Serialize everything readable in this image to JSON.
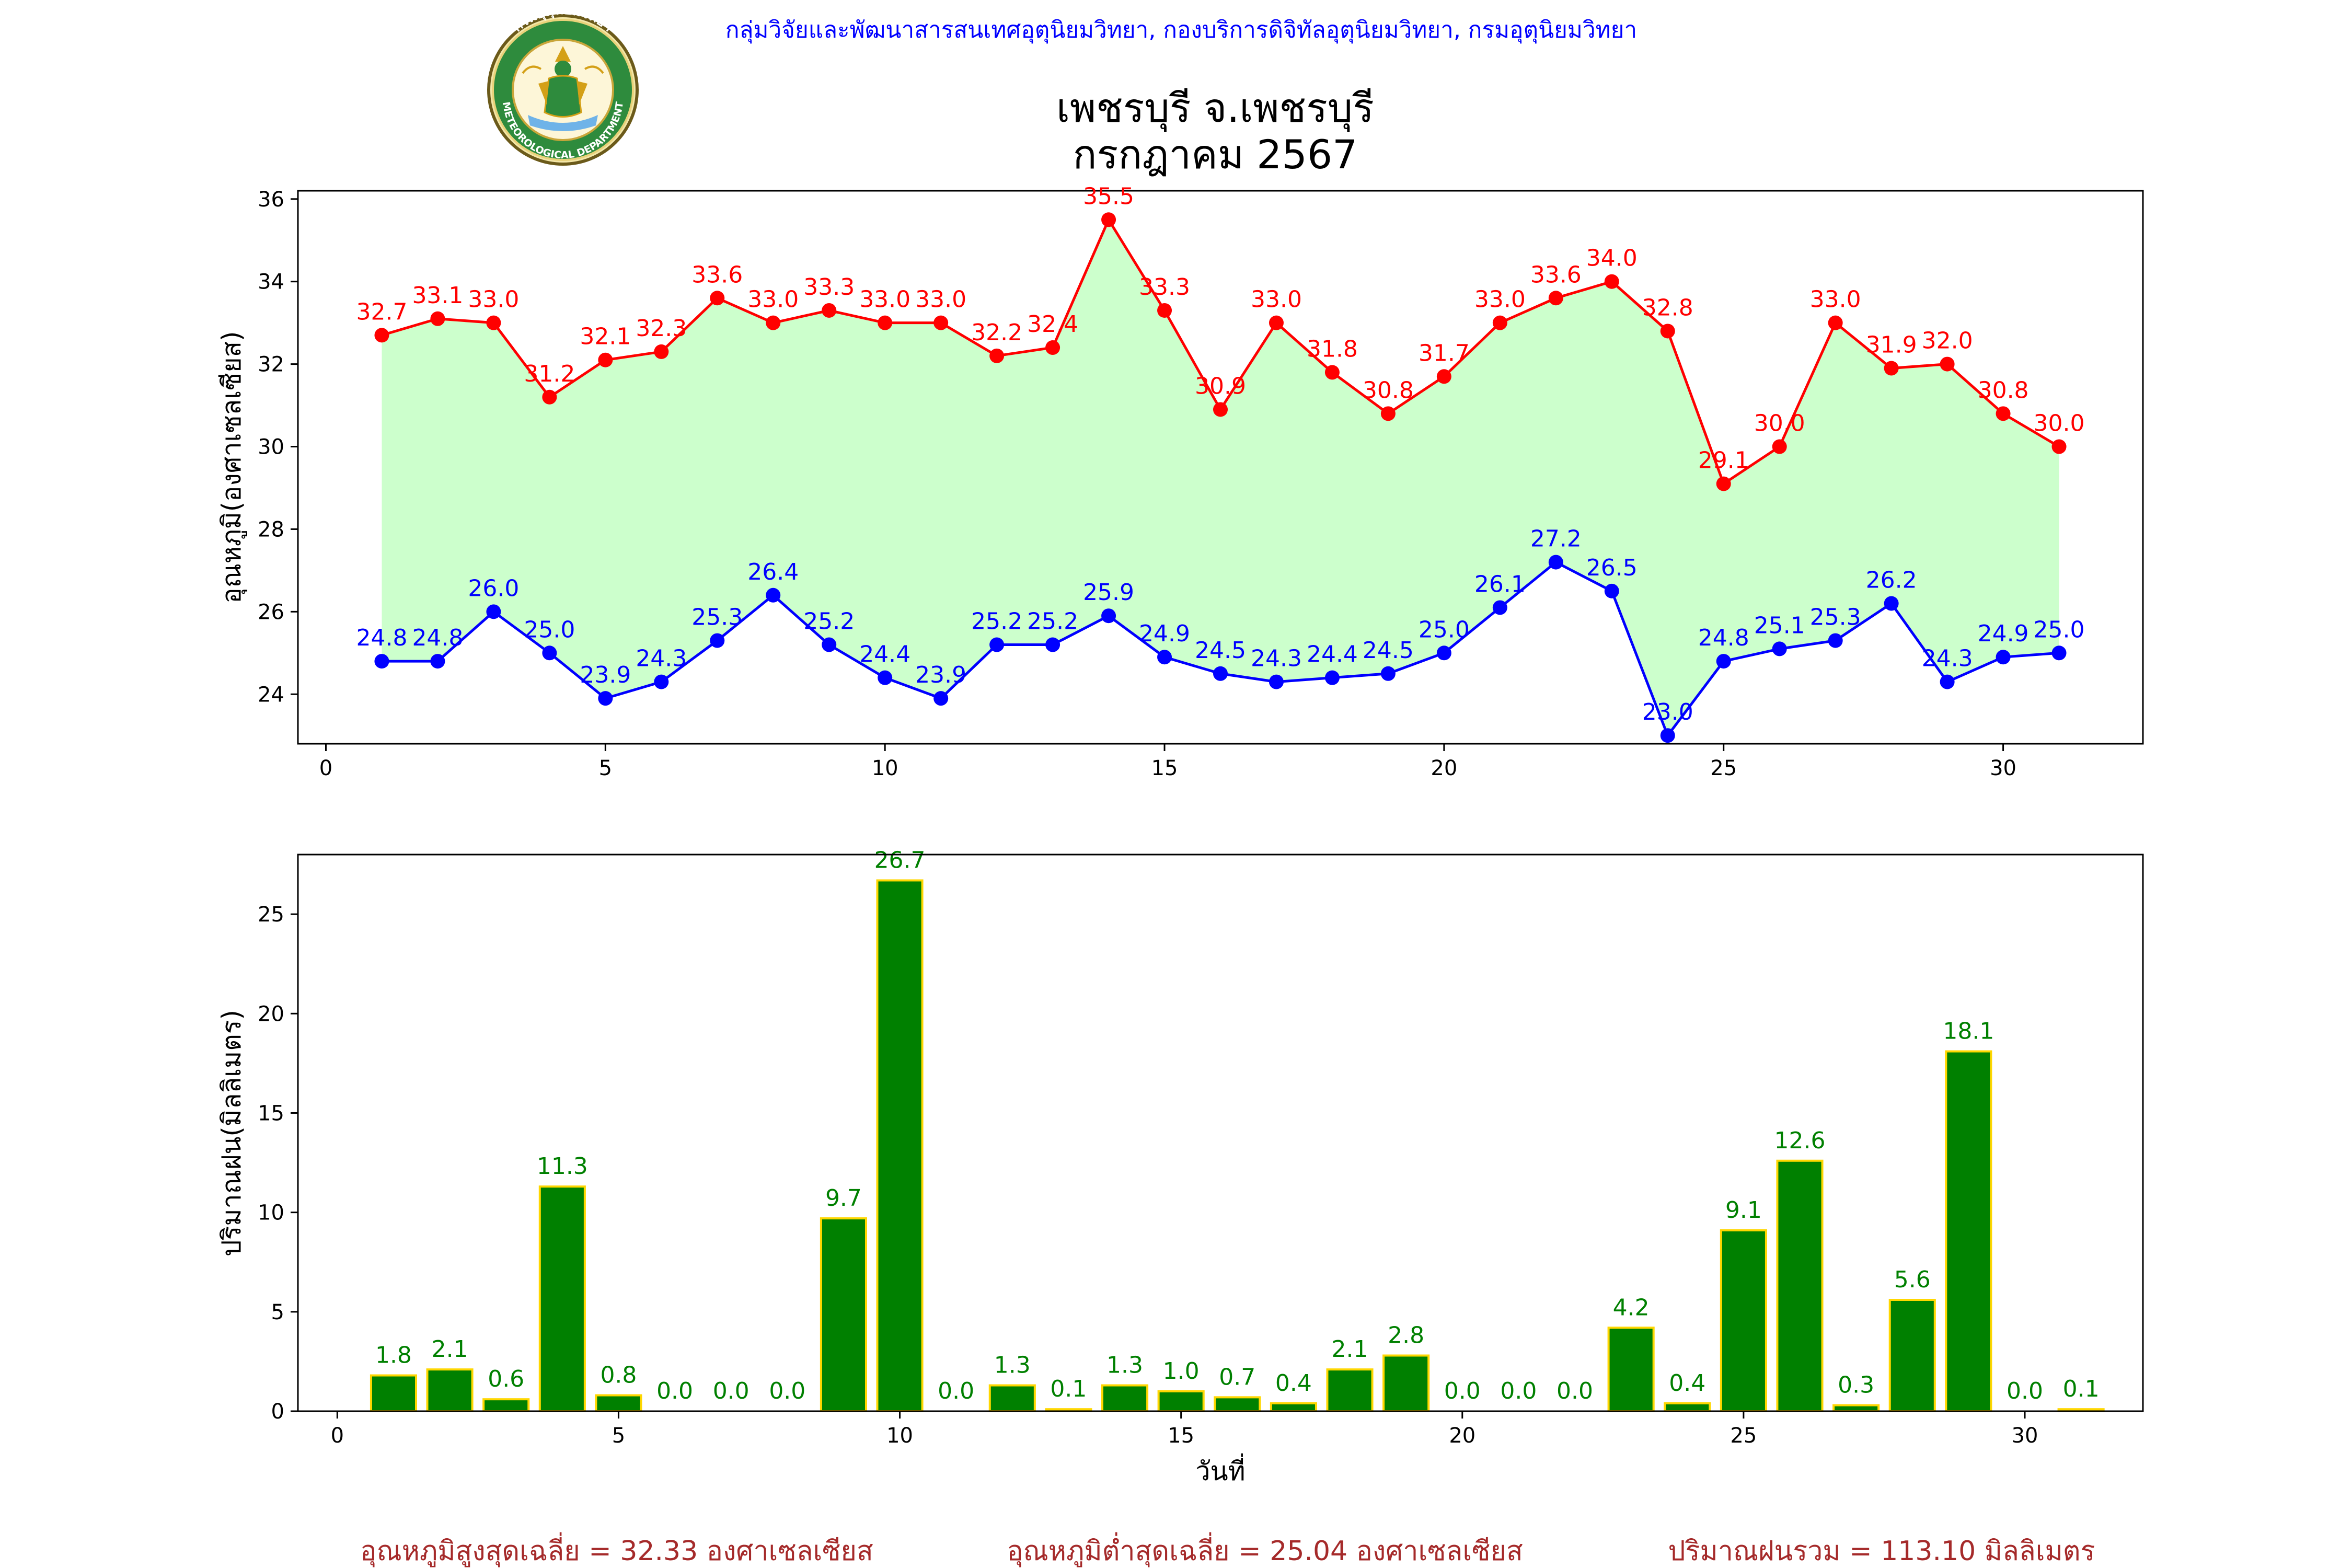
{
  "header": {
    "org_line": "กลุ่มวิจัยและพัฒนาสารสนเทศอุตุนิยมวิทยา, กองบริการดิจิทัลอุตุนิยมวิทยา, กรมอุตุนิยมวิทยา",
    "title": "เพชรบุรี จ.เพชรบุรี",
    "subtitle": "กรกฎาคม 2567",
    "logo_text_top": "กรมอุตุนิยมวิทยา",
    "logo_text_bottom": "METEOROLOGICAL DEPARTMENT"
  },
  "colors": {
    "max_line": "#ff0000",
    "min_line": "#0000ff",
    "fill": "#ccffcc",
    "bar_fill": "#008000",
    "bar_edge": "#ffd700",
    "bar_label": "#008000",
    "summary": "#a52a2a",
    "org_line": "#0000ff"
  },
  "chart_data": [
    {
      "type": "line",
      "ylabel": "อุณหภูมิ(องศาเซลเซียส)",
      "xlabel": "",
      "xlim": [
        -0.5,
        32.5
      ],
      "ylim": [
        22.8,
        36.2
      ],
      "xticks": [
        0,
        5,
        10,
        15,
        20,
        25,
        30
      ],
      "yticks": [
        24,
        26,
        28,
        30,
        32,
        34,
        36
      ],
      "x": [
        1,
        2,
        3,
        4,
        5,
        6,
        7,
        8,
        9,
        10,
        11,
        12,
        13,
        14,
        15,
        16,
        17,
        18,
        19,
        20,
        21,
        22,
        23,
        24,
        25,
        26,
        27,
        28,
        29,
        30,
        31
      ],
      "series": [
        {
          "values": [
            32.7,
            33.1,
            33.0,
            31.2,
            32.1,
            32.3,
            33.6,
            33.0,
            33.3,
            33.0,
            33.0,
            32.2,
            32.4,
            35.5,
            33.3,
            30.9,
            33.0,
            31.8,
            30.8,
            31.7,
            33.0,
            33.6,
            34.0,
            32.8,
            29.1,
            30.0,
            33.0,
            31.9,
            32.0,
            30.8,
            30.0
          ]
        },
        {
          "values": [
            24.8,
            24.8,
            26.0,
            25.0,
            23.9,
            24.3,
            25.3,
            26.4,
            25.2,
            24.4,
            23.9,
            25.2,
            25.2,
            25.9,
            24.9,
            24.5,
            24.3,
            24.4,
            24.5,
            25.0,
            26.1,
            27.2,
            26.5,
            23.0,
            24.8,
            25.1,
            25.3,
            26.2,
            24.3,
            24.9,
            25.0
          ]
        }
      ]
    },
    {
      "type": "bar",
      "ylabel": "ปริมาณฝน(มิลลิเมตร)",
      "xlabel": "วันที่",
      "xlim": [
        -0.7,
        32.1
      ],
      "ylim": [
        0,
        28.0
      ],
      "xticks": [
        0,
        5,
        10,
        15,
        20,
        25,
        30
      ],
      "yticks": [
        0,
        5,
        10,
        15,
        20,
        25
      ],
      "x": [
        1,
        2,
        3,
        4,
        5,
        6,
        7,
        8,
        9,
        10,
        11,
        12,
        13,
        14,
        15,
        16,
        17,
        18,
        19,
        20,
        21,
        22,
        23,
        24,
        25,
        26,
        27,
        28,
        29,
        30,
        31
      ],
      "values": [
        1.8,
        2.1,
        0.6,
        11.3,
        0.8,
        0.0,
        0.0,
        0.0,
        9.7,
        26.7,
        0.0,
        1.3,
        0.1,
        1.3,
        1.0,
        0.7,
        0.4,
        2.1,
        2.8,
        0.0,
        0.0,
        0.0,
        4.2,
        0.4,
        9.1,
        12.6,
        0.3,
        5.6,
        18.1,
        0.0,
        0.1
      ]
    }
  ],
  "summary": {
    "avg_max": "อุณหภูมิสูงสุดเฉลี่ย = 32.33 องศาเซลเซียส",
    "avg_min": "อุณหภูมิต่ำสุดเฉลี่ย = 25.04 องศาเซลเซียส",
    "total_rain": "ปริมาณฝนรวม = 113.10 มิลลิเมตร"
  }
}
